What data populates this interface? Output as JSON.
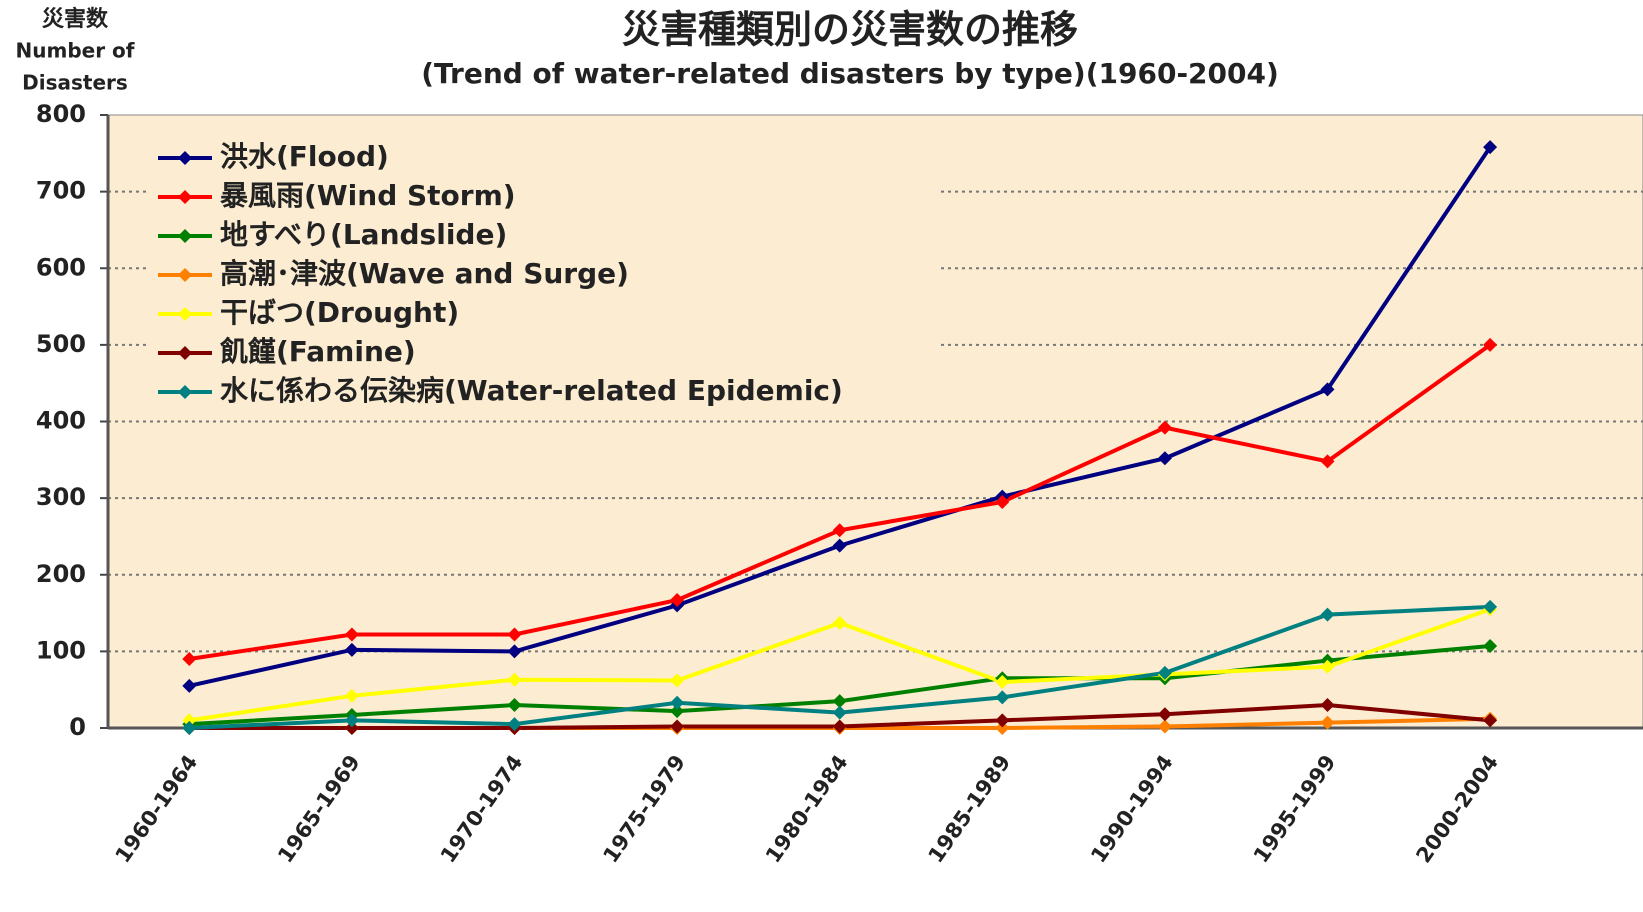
{
  "chart_data": {
    "type": "line",
    "title": "災害種類別の災害数の推移",
    "subtitle": "(Trend of water-related disasters by type)(1960-2004)",
    "ylabel": [
      "災害数",
      "Number of",
      "Disasters"
    ],
    "categories": [
      "1960-1964",
      "1965-1969",
      "1970-1974",
      "1975-1979",
      "1980-1984",
      "1985-1989",
      "1990-1994",
      "1995-1999",
      "2000-2004"
    ],
    "series": [
      {
        "name": "洪水(Flood)",
        "color": "#000080",
        "values": [
          55,
          102,
          100,
          160,
          238,
          302,
          352,
          442,
          758
        ]
      },
      {
        "name": "暴風雨(Wind Storm)",
        "color": "#ff0000",
        "values": [
          90,
          122,
          122,
          167,
          258,
          295,
          392,
          348,
          500
        ]
      },
      {
        "name": "地すべり(Landslide)",
        "color": "#008000",
        "values": [
          5,
          17,
          30,
          22,
          35,
          65,
          65,
          88,
          107
        ]
      },
      {
        "name": "高潮･津波(Wave and Surge)",
        "color": "#ff8000",
        "values": [
          0,
          0,
          0,
          0,
          0,
          0,
          2,
          7,
          12
        ]
      },
      {
        "name": "干ばつ(Drought)",
        "color": "#ffff00",
        "values": [
          10,
          42,
          63,
          62,
          137,
          60,
          70,
          80,
          155
        ]
      },
      {
        "name": "飢饉(Famine)",
        "color": "#800000",
        "values": [
          0,
          0,
          0,
          2,
          2,
          10,
          18,
          30,
          10
        ]
      },
      {
        "name": "水に係わる伝染病(Water-related Epidemic)",
        "color": "#008080",
        "values": [
          0,
          10,
          5,
          33,
          20,
          40,
          72,
          148,
          158
        ]
      }
    ],
    "ylim": [
      0,
      800
    ],
    "yticks": [
      0,
      100,
      200,
      300,
      400,
      500,
      600,
      700,
      800
    ],
    "grid": true,
    "legend": "upper left",
    "background": "#fbecd2"
  }
}
